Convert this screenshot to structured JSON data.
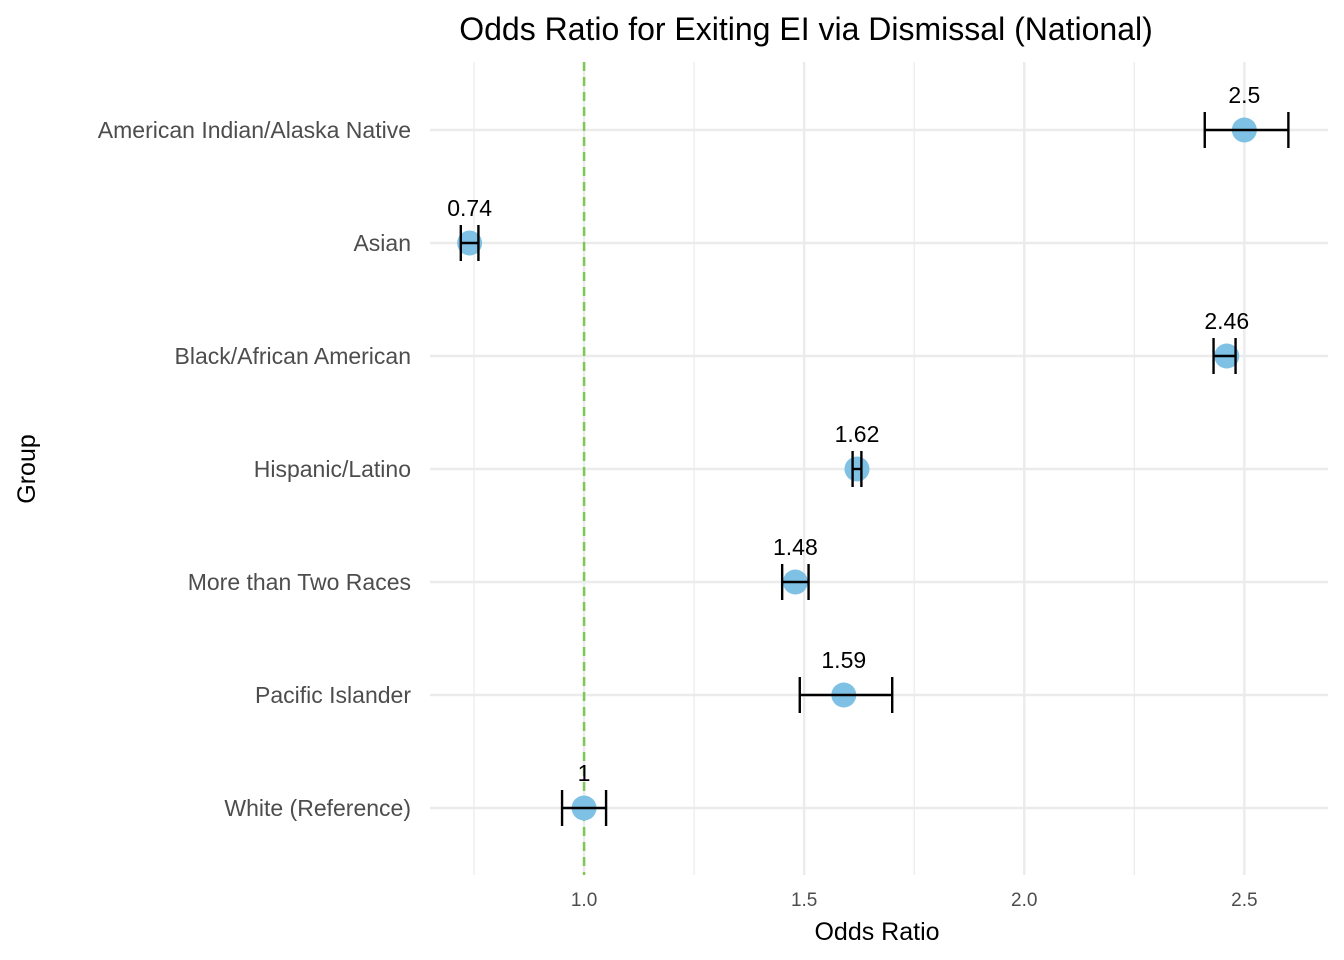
{
  "chart_data": {
    "type": "scatter",
    "title": "Odds Ratio for Exiting EI via Dismissal (National)",
    "xlabel": "Odds Ratio",
    "ylabel": "Group",
    "xlim": [
      0.65,
      2.69
    ],
    "x_ticks": [
      {
        "value": 1.0,
        "label": "1.0"
      },
      {
        "value": 1.5,
        "label": "1.5"
      },
      {
        "value": 2.0,
        "label": "2.0"
      },
      {
        "value": 2.5,
        "label": "2.5"
      }
    ],
    "x_minor_ticks": [
      0.75,
      1.25,
      1.75,
      2.25
    ],
    "reference_line": {
      "value": 1.0,
      "style": "dashed",
      "color": "#7dc855"
    },
    "grid": true,
    "point_color": "#7ec1e5",
    "error_bar_color": "#000000",
    "categories": [
      "American Indian/Alaska Native",
      "Asian",
      "Black/African American",
      "Hispanic/Latino",
      "More than Two Races",
      "Pacific Islander",
      "White (Reference)"
    ],
    "series": [
      {
        "values": [
          2.5,
          0.74,
          2.46,
          1.62,
          1.48,
          1.59,
          1.0
        ],
        "ci_low": [
          2.41,
          0.72,
          2.43,
          1.61,
          1.45,
          1.49,
          0.95
        ],
        "ci_high": [
          2.6,
          0.76,
          2.48,
          1.63,
          1.51,
          1.7,
          1.05
        ],
        "labels": [
          "2.5",
          "0.74",
          "2.46",
          "1.62",
          "1.48",
          "1.59",
          "1"
        ]
      }
    ]
  }
}
